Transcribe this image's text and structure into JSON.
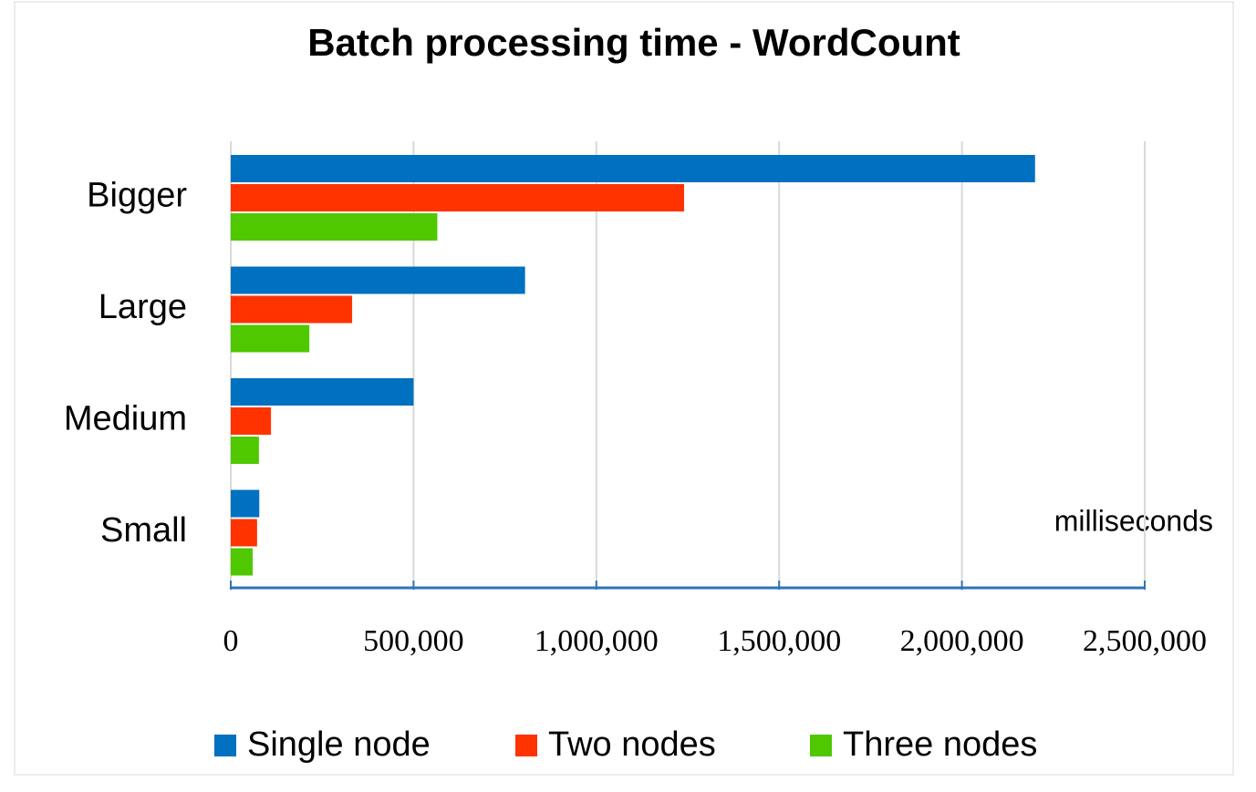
{
  "chart_data": {
    "type": "hbar",
    "title": "Batch processing time - WordCount",
    "categories": [
      "Bigger",
      "Large",
      "Medium",
      "Small"
    ],
    "series": [
      {
        "name": "Single node",
        "color": "#0070c0",
        "values": [
          2200000,
          805000,
          500000,
          78000
        ]
      },
      {
        "name": "Two nodes",
        "color": "#ff3300",
        "values": [
          1240000,
          332000,
          110000,
          72000
        ]
      },
      {
        "name": "Three nodes",
        "color": "#4fc800",
        "values": [
          565000,
          215000,
          77000,
          60000
        ]
      }
    ],
    "xlim": [
      0,
      2500000
    ],
    "xticks": [
      0,
      {
        "value": 500000,
        "label": "500,000"
      },
      {
        "value": 1000000,
        "label": "1,000,000"
      },
      {
        "value": 1500000,
        "label": "1,500,000"
      },
      {
        "value": 2000000,
        "label": "2,000,000"
      },
      {
        "value": 2500000,
        "label": "2,500,000"
      }
    ],
    "annotation": "milliseconds",
    "grid": true
  }
}
